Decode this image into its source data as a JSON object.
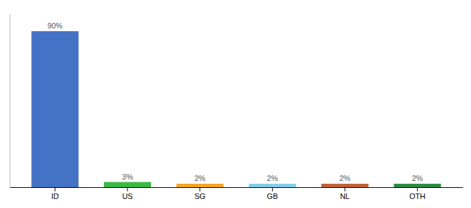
{
  "chart_data": {
    "type": "bar",
    "categories": [
      "ID",
      "US",
      "SG",
      "GB",
      "NL",
      "OTH"
    ],
    "values": [
      90,
      3,
      2,
      2,
      2,
      2
    ],
    "value_labels": [
      "90%",
      "3%",
      "2%",
      "2%",
      "2%",
      "2%"
    ],
    "colors": [
      "#4472C4",
      "#3CB944",
      "#F5A623",
      "#87CEEB",
      "#C0623A",
      "#2E8B44"
    ],
    "ylim": [
      0,
      100
    ],
    "data_labels": true,
    "tick_labels": "x",
    "grid": false
  }
}
